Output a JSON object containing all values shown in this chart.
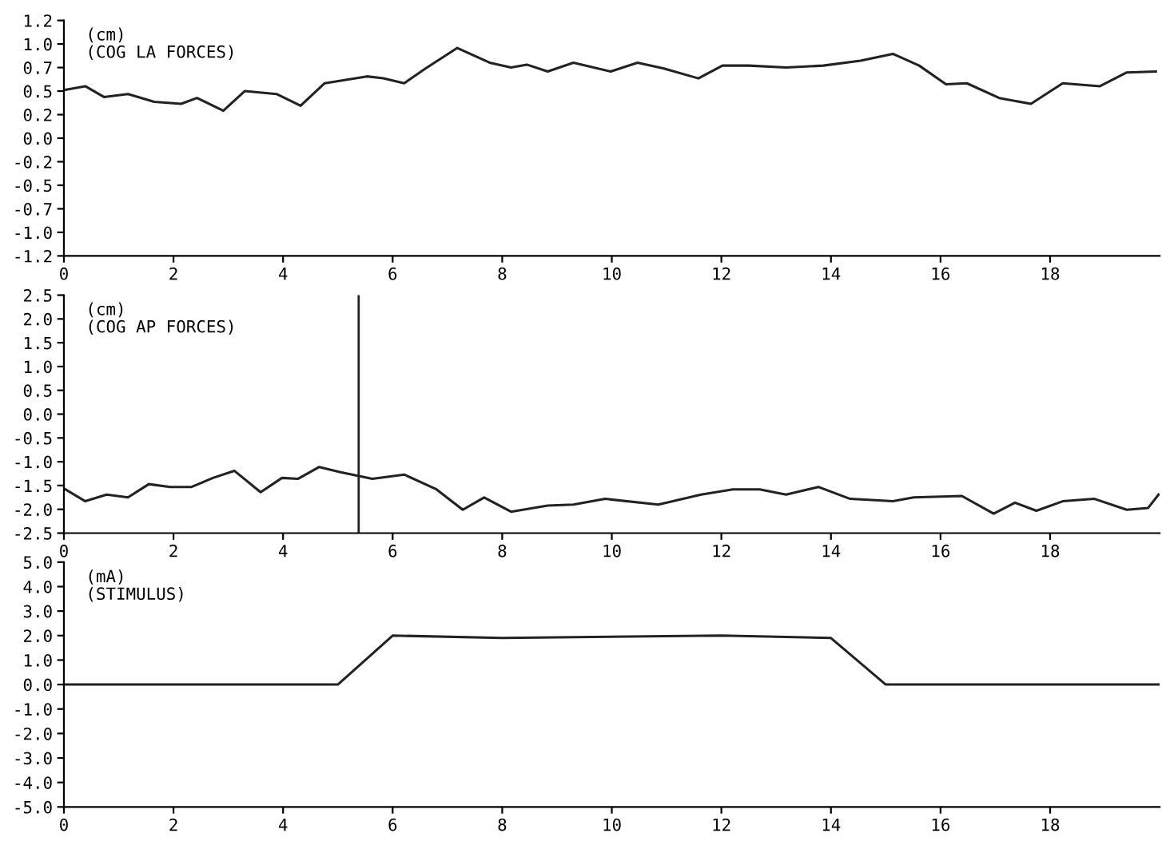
{
  "chart_data": [
    {
      "type": "line",
      "annotations": [
        "(cm)",
        "(COG LA FORCES)"
      ],
      "xlim": [
        0,
        20
      ],
      "xticks": [
        0,
        2,
        4,
        6,
        8,
        10,
        12,
        14,
        16,
        18
      ],
      "ylim": [
        -1.2,
        1.2
      ],
      "yticks": [
        1.2,
        {
          "value": 0.96,
          "label": "1.0"
        },
        {
          "value": 0.72,
          "label": "0.7"
        },
        {
          "value": 0.48,
          "label": "0.5"
        },
        {
          "value": 0.24,
          "label": "0.2"
        },
        {
          "value": 0,
          "label": "0.0"
        },
        {
          "value": -0.24,
          "label": "-0.2"
        },
        {
          "value": -0.48,
          "label": "-0.5"
        },
        {
          "value": -0.72,
          "label": "-0.7"
        },
        {
          "value": -0.96,
          "label": "-1.0"
        },
        -1.2
      ],
      "series": [
        {
          "color": "#222222",
          "x": [
            0,
            0.39,
            0.73,
            1.17,
            1.65,
            2.14,
            2.43,
            2.91,
            3.3,
            3.88,
            4.32,
            4.76,
            5.53,
            5.83,
            6.21,
            6.6,
            7.18,
            7.77,
            8.16,
            8.45,
            8.83,
            9.3,
            9.98,
            10.47,
            10.95,
            11.58,
            12.02,
            12.5,
            13.18,
            13.86,
            14.54,
            15.13,
            15.61,
            16.1,
            16.48,
            17.07,
            17.65,
            18.23,
            18.91,
            19.4,
            19.93
          ],
          "values": [
            0.49,
            0.53,
            0.42,
            0.45,
            0.37,
            0.35,
            0.41,
            0.28,
            0.48,
            0.45,
            0.33,
            0.56,
            0.63,
            0.61,
            0.56,
            0.71,
            0.92,
            0.77,
            0.72,
            0.75,
            0.68,
            0.77,
            0.68,
            0.77,
            0.71,
            0.61,
            0.74,
            0.74,
            0.72,
            0.74,
            0.79,
            0.86,
            0.74,
            0.55,
            0.56,
            0.41,
            0.35,
            0.56,
            0.53,
            0.67,
            0.68
          ]
        }
      ]
    },
    {
      "type": "line",
      "annotations": [
        "(cm)",
        "(COG AP FORCES)"
      ],
      "xlim": [
        0,
        20
      ],
      "xticks": [
        0,
        2,
        4,
        6,
        8,
        10,
        12,
        14,
        16,
        18
      ],
      "ylim": [
        -2.5,
        2.5
      ],
      "yticks": [
        2.5,
        {
          "value": 2,
          "label": "2.0"
        },
        1.5,
        {
          "value": 1,
          "label": "1.0"
        },
        0.5,
        {
          "value": 0,
          "label": "0.0"
        },
        -0.5,
        {
          "value": -1,
          "label": "-1.0"
        },
        -1.5,
        {
          "value": -2,
          "label": "-2.0"
        },
        -2.5
      ],
      "ref_lines": [
        {
          "axis": "x",
          "value": 5.38,
          "color": "#222222"
        }
      ],
      "series": [
        {
          "color": "#222222",
          "x": [
            0,
            0.39,
            0.78,
            1.17,
            1.55,
            1.94,
            2.33,
            2.72,
            3.11,
            3.59,
            3.98,
            4.27,
            4.66,
            5.05,
            5.63,
            6.21,
            6.8,
            7.28,
            7.67,
            8.16,
            8.83,
            9.3,
            9.88,
            10.85,
            11.63,
            12.21,
            12.7,
            13.18,
            13.77,
            14.35,
            15.13,
            15.51,
            16.39,
            16.97,
            17.36,
            17.75,
            18.23,
            18.81,
            19.4,
            19.79,
            19.98
          ],
          "values": [
            -1.56,
            -1.83,
            -1.69,
            -1.75,
            -1.47,
            -1.53,
            -1.53,
            -1.34,
            -1.19,
            -1.64,
            -1.34,
            -1.36,
            -1.11,
            -1.22,
            -1.36,
            -1.27,
            -1.58,
            -2.01,
            -1.75,
            -2.05,
            -1.92,
            -1.9,
            -1.78,
            -1.9,
            -1.69,
            -1.58,
            -1.58,
            -1.69,
            -1.53,
            -1.78,
            -1.83,
            -1.75,
            -1.72,
            -2.09,
            -1.86,
            -2.03,
            -1.83,
            -1.78,
            -2.01,
            -1.97,
            -1.69
          ]
        }
      ]
    },
    {
      "type": "line",
      "annotations": [
        "(mA)",
        "(STIMULUS)"
      ],
      "xlim": [
        0,
        20
      ],
      "xticks": [
        0,
        2,
        4,
        6,
        8,
        10,
        12,
        14,
        16,
        18
      ],
      "ylim": [
        -5.0,
        5.0
      ],
      "yticks": [
        {
          "value": 5,
          "label": "5.0"
        },
        {
          "value": 4,
          "label": "4.0"
        },
        {
          "value": 3,
          "label": "3.0"
        },
        {
          "value": 2,
          "label": "2.0"
        },
        {
          "value": 1,
          "label": "1.0"
        },
        {
          "value": 0,
          "label": "0.0"
        },
        {
          "value": -1,
          "label": "-1.0"
        },
        {
          "value": -2,
          "label": "-2.0"
        },
        {
          "value": -3,
          "label": "-3.0"
        },
        {
          "value": -4,
          "label": "-4.0"
        },
        {
          "value": -5,
          "label": "-5.0"
        }
      ],
      "series": [
        {
          "color": "#222222",
          "x": [
            0,
            5.0,
            6.0,
            8.0,
            12.0,
            14.0,
            15.0,
            20.0
          ],
          "values": [
            0,
            0,
            2.0,
            1.9,
            2.0,
            1.9,
            0,
            0
          ]
        }
      ]
    }
  ]
}
